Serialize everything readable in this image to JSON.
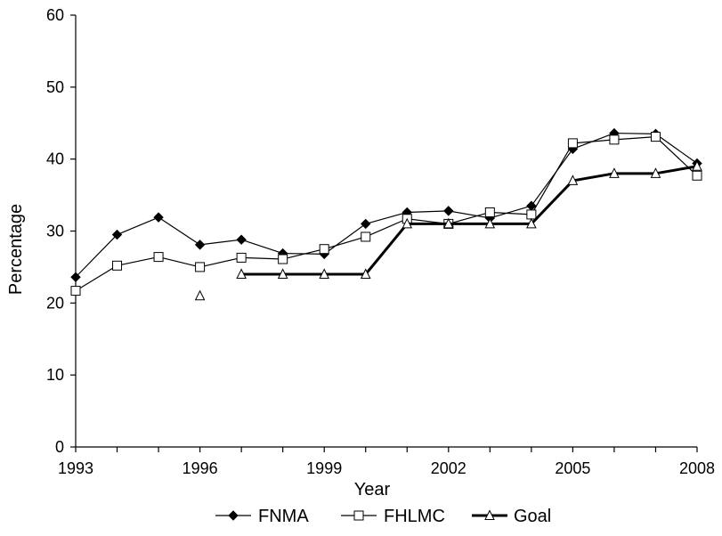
{
  "chart_data": {
    "type": "line",
    "xlabel": "Year",
    "ylabel": "Percentage",
    "xlim": [
      1993,
      2008
    ],
    "ylim": [
      0,
      60
    ],
    "x_ticks": [
      1993,
      1996,
      1999,
      2002,
      2005,
      2008
    ],
    "y_ticks": [
      0,
      10,
      20,
      30,
      40,
      50,
      60
    ],
    "grid": false,
    "legend_position": "bottom",
    "series": [
      {
        "name": "FNMA",
        "marker": "filled-diamond",
        "color": "#000000",
        "x": [
          1993,
          1994,
          1995,
          1996,
          1997,
          1998,
          1999,
          2000,
          2001,
          2002,
          2003,
          2004,
          2005,
          2006,
          2007,
          2008
        ],
        "y": [
          23.6,
          29.5,
          31.9,
          28.1,
          28.8,
          26.9,
          26.8,
          31.0,
          32.6,
          32.8,
          31.8,
          33.5,
          41.4,
          43.6,
          43.5,
          39.4
        ]
      },
      {
        "name": "FHLMC",
        "marker": "open-square",
        "color": "#000000",
        "x": [
          1993,
          1994,
          1995,
          1996,
          1997,
          1998,
          1999,
          2000,
          2001,
          2002,
          2003,
          2004,
          2005,
          2006,
          2007,
          2008
        ],
        "y": [
          21.7,
          25.2,
          26.4,
          25.0,
          26.3,
          26.1,
          27.5,
          29.2,
          31.7,
          31.0,
          32.6,
          32.3,
          42.2,
          42.7,
          43.1,
          37.7
        ]
      },
      {
        "name": "Goal",
        "marker": "open-triangle",
        "color": "#000000",
        "x": [
          1996,
          1997,
          1998,
          1999,
          2000,
          2001,
          2002,
          2003,
          2004,
          2005,
          2006,
          2007,
          2008
        ],
        "y": [
          21,
          24,
          24,
          24,
          24,
          31,
          31,
          31,
          31,
          37,
          38,
          38,
          39
        ],
        "segment_break_after_index": 0
      }
    ]
  }
}
